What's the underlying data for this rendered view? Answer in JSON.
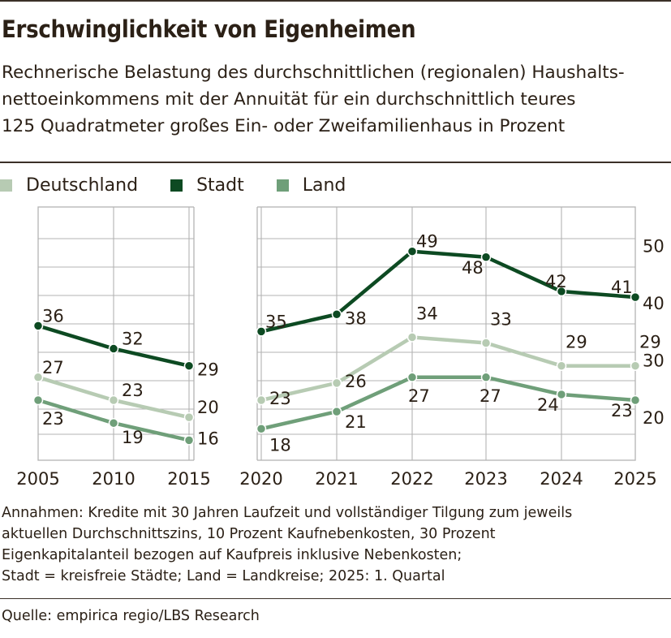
{
  "title": "Erschwinglichkeit von Eigenheimen",
  "subtitle_lines": [
    "Rechnerische Belastung des durchschnittlichen (regionalen) Haushalts-",
    "nettoeinkommens mit der Annuität für ein durchschnittlich teures",
    "125 Quadratmeter großes Ein- oder Zweifamilienhaus in Prozent"
  ],
  "colors": {
    "deutschland": "#b7cbb3",
    "stadt": "#0d4a22",
    "land": "#6f9f79",
    "grid": "#b3b3b3",
    "rule": "#3b3028"
  },
  "chart_data": {
    "type": "line",
    "categories": [
      "2005",
      "2010",
      "2015",
      "2020",
      "2021",
      "2022",
      "2023",
      "2024",
      "2025"
    ],
    "gap_after": "2015",
    "y_ticks": [
      20,
      30,
      40,
      50
    ],
    "ylim": [
      13,
      55
    ],
    "y_axis_position": "right",
    "series": [
      {
        "name": "Deutschland",
        "color_key": "deutschland",
        "values": [
          27,
          23,
          20,
          23,
          26,
          34,
          33,
          29,
          29
        ]
      },
      {
        "name": "Stadt",
        "color_key": "stadt",
        "values": [
          36,
          32,
          29,
          35,
          38,
          49,
          48,
          42,
          41
        ]
      },
      {
        "name": "Land",
        "color_key": "land",
        "values": [
          23,
          19,
          16,
          18,
          21,
          27,
          27,
          24,
          23
        ]
      }
    ]
  },
  "notes_lines": [
    "Annahmen: Kredite mit 30 Jahren Laufzeit und vollständiger Tilgung zum jeweils",
    "aktuellen Durchschnittszins, 10 Prozent Kaufnebenkosten, 30 Prozent",
    "Eigenkapitalanteil bezogen auf Kaufpreis inklusive Nebenkosten;",
    "Stadt = kreisfreie Städte; Land = Landkreise; 2025: 1. Quartal"
  ],
  "source": "Quelle: empirica regio/LBS Research"
}
